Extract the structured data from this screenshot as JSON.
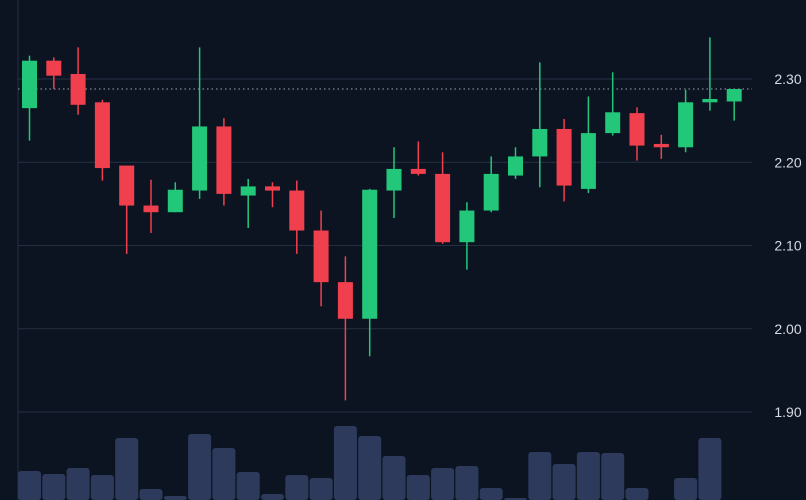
{
  "chart_data": {
    "type": "candlestick",
    "title": "",
    "ylim": [
      1.86,
      2.36
    ],
    "y_ticks": [
      1.9,
      2.0,
      2.1,
      2.2,
      2.3
    ],
    "y_tick_labels": [
      "1.90",
      "2.00",
      "2.10",
      "2.20",
      "2.30"
    ],
    "last_price_line": 2.288,
    "grid": true,
    "colors": {
      "background": "#0d1421",
      "grid": "#243042",
      "up": "#22c77a",
      "down": "#f0404e",
      "volume": "#2d3a5c",
      "price_line": "#9aa3b2"
    },
    "series": [
      {
        "open": 2.265,
        "high": 2.328,
        "low": 2.226,
        "close": 2.322
      },
      {
        "open": 2.322,
        "high": 2.326,
        "low": 2.288,
        "close": 2.304
      },
      {
        "open": 2.306,
        "high": 2.338,
        "low": 2.257,
        "close": 2.269
      },
      {
        "open": 2.272,
        "high": 2.275,
        "low": 2.178,
        "close": 2.193
      },
      {
        "open": 2.196,
        "high": 2.196,
        "low": 2.09,
        "close": 2.148
      },
      {
        "open": 2.148,
        "high": 2.179,
        "low": 2.115,
        "close": 2.14
      },
      {
        "open": 2.14,
        "high": 2.176,
        "low": 2.14,
        "close": 2.167
      },
      {
        "open": 2.166,
        "high": 2.338,
        "low": 2.156,
        "close": 2.243
      },
      {
        "open": 2.243,
        "high": 2.253,
        "low": 2.148,
        "close": 2.162
      },
      {
        "open": 2.16,
        "high": 2.18,
        "low": 2.121,
        "close": 2.171
      },
      {
        "open": 2.171,
        "high": 2.176,
        "low": 2.146,
        "close": 2.166
      },
      {
        "open": 2.166,
        "high": 2.178,
        "low": 2.09,
        "close": 2.118
      },
      {
        "open": 2.118,
        "high": 2.142,
        "low": 2.027,
        "close": 2.056
      },
      {
        "open": 2.056,
        "high": 2.087,
        "low": 1.914,
        "close": 2.012
      },
      {
        "open": 2.012,
        "high": 2.168,
        "low": 1.967,
        "close": 2.167
      },
      {
        "open": 2.166,
        "high": 2.218,
        "low": 2.133,
        "close": 2.192
      },
      {
        "open": 2.192,
        "high": 2.225,
        "low": 2.184,
        "close": 2.186
      },
      {
        "open": 2.186,
        "high": 2.212,
        "low": 2.102,
        "close": 2.104
      },
      {
        "open": 2.104,
        "high": 2.152,
        "low": 2.071,
        "close": 2.142
      },
      {
        "open": 2.142,
        "high": 2.207,
        "low": 2.14,
        "close": 2.186
      },
      {
        "open": 2.184,
        "high": 2.218,
        "low": 2.18,
        "close": 2.207
      },
      {
        "open": 2.207,
        "high": 2.32,
        "low": 2.17,
        "close": 2.24
      },
      {
        "open": 2.24,
        "high": 2.252,
        "low": 2.153,
        "close": 2.172
      },
      {
        "open": 2.168,
        "high": 2.279,
        "low": 2.163,
        "close": 2.235
      },
      {
        "open": 2.235,
        "high": 2.308,
        "low": 2.232,
        "close": 2.26
      },
      {
        "open": 2.259,
        "high": 2.266,
        "low": 2.202,
        "close": 2.22
      },
      {
        "open": 2.222,
        "high": 2.233,
        "low": 2.204,
        "close": 2.218
      },
      {
        "open": 2.218,
        "high": 2.287,
        "low": 2.212,
        "close": 2.272
      },
      {
        "open": 2.272,
        "high": 2.35,
        "low": 2.262,
        "close": 2.276
      },
      {
        "open": 2.273,
        "high": 2.288,
        "low": 2.25,
        "close": 2.288
      }
    ],
    "volume": [
      29,
      26,
      32,
      25,
      62,
      11,
      4,
      66,
      52,
      28,
      6,
      25,
      22,
      74,
      64,
      44,
      25,
      32,
      34,
      12,
      2,
      48,
      36,
      48,
      47,
      12,
      0,
      22,
      62,
      0
    ],
    "volume_ylim": [
      0,
      80
    ]
  }
}
